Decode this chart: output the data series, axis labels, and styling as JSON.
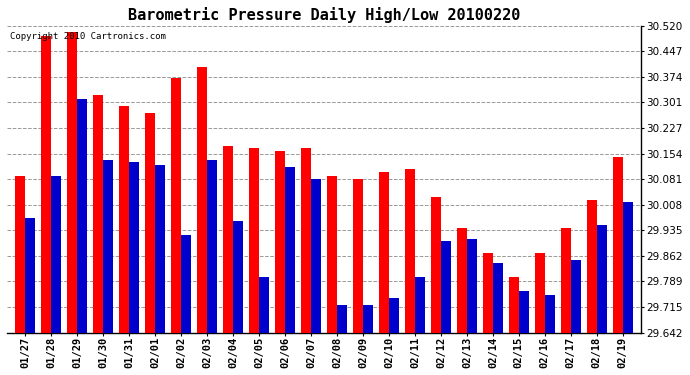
{
  "title": "Barometric Pressure Daily High/Low 20100220",
  "copyright": "Copyright 2010 Cartronics.com",
  "dates": [
    "01/27",
    "01/28",
    "01/29",
    "01/30",
    "01/31",
    "02/01",
    "02/02",
    "02/03",
    "02/04",
    "02/05",
    "02/06",
    "02/07",
    "02/08",
    "02/09",
    "02/10",
    "02/11",
    "02/12",
    "02/13",
    "02/14",
    "02/15",
    "02/16",
    "02/17",
    "02/18",
    "02/19"
  ],
  "highs": [
    30.09,
    30.49,
    30.5,
    30.32,
    30.29,
    30.27,
    30.37,
    30.4,
    30.175,
    30.17,
    30.16,
    30.17,
    30.09,
    30.08,
    30.1,
    30.11,
    30.03,
    29.94,
    29.87,
    29.8,
    29.87,
    29.94,
    30.02,
    30.145
  ],
  "lows": [
    29.97,
    30.09,
    30.31,
    30.135,
    30.13,
    30.12,
    29.92,
    30.135,
    29.96,
    29.8,
    30.115,
    30.08,
    29.72,
    29.72,
    29.74,
    29.8,
    29.905,
    29.91,
    29.84,
    29.76,
    29.75,
    29.85,
    29.95,
    30.015
  ],
  "high_color": "#ff0000",
  "low_color": "#0000cc",
  "background_color": "#ffffff",
  "grid_color": "#999999",
  "ymin": 29.642,
  "ymax": 30.52,
  "yticks": [
    29.642,
    29.715,
    29.789,
    29.862,
    29.935,
    30.008,
    30.081,
    30.154,
    30.227,
    30.301,
    30.374,
    30.447,
    30.52
  ],
  "bar_width": 0.38,
  "title_fontsize": 11,
  "tick_fontsize": 7.5,
  "copyright_fontsize": 6.5
}
